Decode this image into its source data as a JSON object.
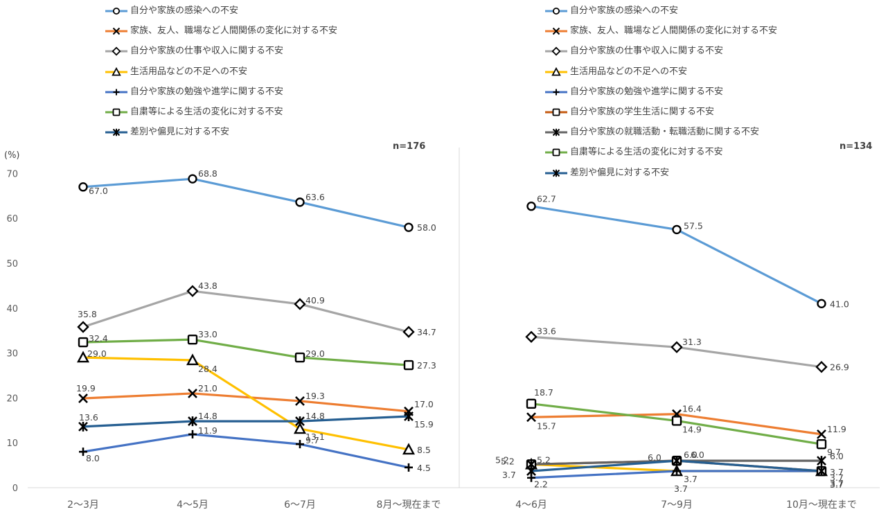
{
  "chart_data": [
    {
      "type": "line",
      "note": "n=176",
      "ylabel": "(%)",
      "ylim": [
        0,
        70
      ],
      "yticks": [
        0,
        10,
        20,
        30,
        40,
        50,
        60,
        70
      ],
      "categories": [
        "2～3月",
        "4～5月",
        "6～7月",
        "8月～現在まで"
      ],
      "series": [
        {
          "name": "自分や家族の感染への不安",
          "values": [
            67.0,
            68.8,
            63.6,
            58.0
          ],
          "color": "#5B9BD5",
          "marker": "circle",
          "labels": [
            "67.0",
            "68.8",
            "63.6",
            "58.0"
          ]
        },
        {
          "name": "家族、友人、職場など人間関係の変化に対する不安",
          "values": [
            19.9,
            21.0,
            19.3,
            17.0
          ],
          "color": "#ED7D31",
          "marker": "x",
          "labels": [
            "19.9",
            "21.0",
            "19.3",
            "17.0"
          ]
        },
        {
          "name": "自分や家族の仕事や収入に関する不安",
          "values": [
            35.8,
            43.8,
            40.9,
            34.7
          ],
          "color": "#A5A5A5",
          "marker": "diamond",
          "labels": [
            "35.8",
            "43.8",
            "40.9",
            "34.7"
          ]
        },
        {
          "name": "生活用品などの不足への不安",
          "values": [
            29.0,
            28.4,
            13.1,
            8.5
          ],
          "color": "#FFC000",
          "marker": "triangle",
          "labels": [
            "29.0",
            "28.4",
            "13.1",
            "8.5"
          ]
        },
        {
          "name": "自分や家族の勉強や進学に関する不安",
          "values": [
            8.0,
            11.9,
            9.7,
            4.5
          ],
          "color": "#4472C4",
          "marker": "plus",
          "labels": [
            "8.0",
            "11.9",
            "9.7",
            "4.5"
          ]
        },
        {
          "name": "自粛等による生活の変化に対する不安",
          "values": [
            32.4,
            33.0,
            29.0,
            27.3
          ],
          "color": "#70AD47",
          "marker": "square",
          "labels": [
            "32.4",
            "33.0",
            "29.0",
            "27.3"
          ]
        },
        {
          "name": "差別や偏見に対する不安",
          "values": [
            13.6,
            14.8,
            14.8,
            15.9
          ],
          "color": "#255E91",
          "marker": "star",
          "labels": [
            "13.6",
            "14.8",
            "14.8",
            "15.9"
          ]
        }
      ]
    },
    {
      "type": "line",
      "note": "n=134",
      "ylim": [
        0,
        70
      ],
      "categories": [
        "4～6月",
        "7～9月",
        "10月～現在まで"
      ],
      "series": [
        {
          "name": "自分や家族の感染への不安",
          "values": [
            62.7,
            57.5,
            41.0
          ],
          "color": "#5B9BD5",
          "marker": "circle",
          "labels": [
            "62.7",
            "57.5",
            "41.0"
          ]
        },
        {
          "name": "家族、友人、職場など人間関係の変化に対する不安",
          "values": [
            15.7,
            16.4,
            11.9
          ],
          "color": "#ED7D31",
          "marker": "x",
          "labels": [
            "15.7",
            "16.4",
            "11.9"
          ]
        },
        {
          "name": "自分や家族の仕事や収入に関する不安",
          "values": [
            33.6,
            31.3,
            26.9
          ],
          "color": "#A5A5A5",
          "marker": "diamond",
          "labels": [
            "33.6",
            "31.3",
            "26.9"
          ]
        },
        {
          "name": "生活用品などの不足への不安",
          "values": [
            5.2,
            3.7,
            3.7
          ],
          "color": "#FFC000",
          "marker": "triangle",
          "labels": [
            "5.2",
            "3.7",
            "3.7"
          ]
        },
        {
          "name": "自分や家族の勉強や進学に関する不安",
          "values": [
            2.2,
            3.7,
            3.7
          ],
          "color": "#4472C4",
          "marker": "plus",
          "labels": [
            "2.2",
            "3.7",
            "3.7"
          ]
        },
        {
          "name": "自分や家族の学生生活に関する不安",
          "values": [
            5.2,
            6.0,
            3.7
          ],
          "color": "#C55A11",
          "marker": "square",
          "labels": [
            "5.2",
            "6.0",
            "3.7"
          ]
        },
        {
          "name": "自分や家族の就職活動・転職活動に関する不安",
          "values": [
            5.2,
            6.0,
            6.0
          ],
          "color": "#636363",
          "marker": "star",
          "labels": [
            "5.2",
            "6.0",
            "6.0"
          ]
        },
        {
          "name": "自粛等による生活の変化に対する不安",
          "values": [
            18.7,
            14.9,
            9.7
          ],
          "color": "#70AD47",
          "marker": "square",
          "labels": [
            "18.7",
            "14.9",
            "9.7"
          ]
        },
        {
          "name": "差別や偏見に対する不安",
          "values": [
            3.7,
            6.0,
            3.7
          ],
          "color": "#255E91",
          "marker": "star",
          "labels": [
            "3.7",
            "6.0",
            "3.7"
          ]
        }
      ]
    }
  ]
}
